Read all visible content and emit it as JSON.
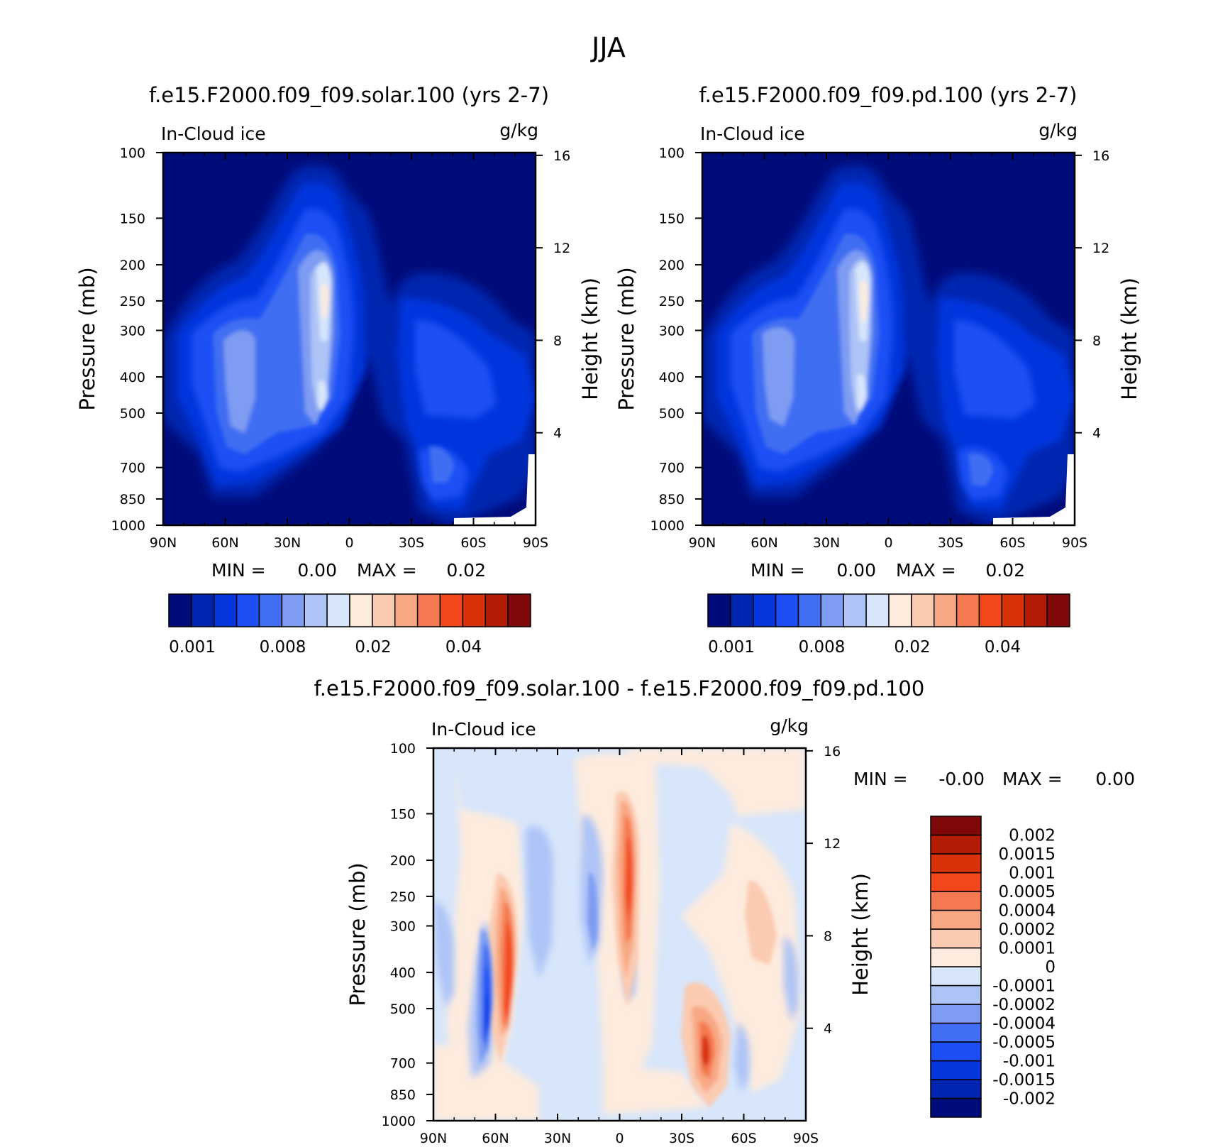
{
  "figure": {
    "title": "JJA"
  },
  "chart_data": [
    {
      "type": "contour",
      "id": "solar",
      "title": "f.e15.F2000.f09_f09.solar.100 (yrs 2-7)",
      "variable": "In-Cloud ice",
      "units": "g/kg",
      "xlabel": "",
      "ylabel": "Pressure (mb)",
      "y2label": "Height (km)",
      "xticks": [
        "90N",
        "60N",
        "30N",
        "0",
        "30S",
        "60S",
        "90S"
      ],
      "yticks": [
        "100",
        "150",
        "200",
        "250",
        "300",
        "400",
        "500",
        "700",
        "850",
        "1000"
      ],
      "y2ticks": [
        "16",
        "12",
        "8",
        "4"
      ],
      "stats": {
        "min_label": "MIN =",
        "min_value": "0.00",
        "max_label": "MAX =",
        "max_value": "0.02"
      },
      "colorbar": {
        "colors": [
          "#000c7a",
          "#0025b1",
          "#0435dd",
          "#1b4ff5",
          "#416ef2",
          "#7e9cf2",
          "#aec4f7",
          "#d7e6fb",
          "#fdebdd",
          "#fbcbb1",
          "#f8a884",
          "#f57950",
          "#f3481b",
          "#d93208",
          "#b21c05",
          "#7f0808"
        ],
        "labels": [
          "0.001",
          "0.008",
          "0.02",
          "0.04"
        ]
      }
    },
    {
      "type": "contour",
      "id": "pd",
      "title": "f.e15.F2000.f09_f09.pd.100 (yrs 2-7)",
      "variable": "In-Cloud ice",
      "units": "g/kg",
      "xlabel": "",
      "ylabel": "Pressure (mb)",
      "y2label": "Height (km)",
      "xticks": [
        "90N",
        "60N",
        "30N",
        "0",
        "30S",
        "60S",
        "90S"
      ],
      "yticks": [
        "100",
        "150",
        "200",
        "250",
        "300",
        "400",
        "500",
        "700",
        "850",
        "1000"
      ],
      "y2ticks": [
        "16",
        "12",
        "8",
        "4"
      ],
      "stats": {
        "min_label": "MIN =",
        "min_value": "0.00",
        "max_label": "MAX =",
        "max_value": "0.02"
      },
      "colorbar": {
        "colors": [
          "#000c7a",
          "#0025b1",
          "#0435dd",
          "#1b4ff5",
          "#416ef2",
          "#7e9cf2",
          "#aec4f7",
          "#d7e6fb",
          "#fdebdd",
          "#fbcbb1",
          "#f8a884",
          "#f57950",
          "#f3481b",
          "#d93208",
          "#b21c05",
          "#7f0808"
        ],
        "labels": [
          "0.001",
          "0.008",
          "0.02",
          "0.04"
        ]
      }
    },
    {
      "type": "contour",
      "id": "diff",
      "title": "f.e15.F2000.f09_f09.solar.100 - f.e15.F2000.f09_f09.pd.100",
      "variable": "In-Cloud ice",
      "units": "g/kg",
      "xlabel": "",
      "ylabel": "Pressure (mb)",
      "y2label": "Height (km)",
      "xticks": [
        "90N",
        "60N",
        "30N",
        "0",
        "30S",
        "60S",
        "90S"
      ],
      "yticks": [
        "100",
        "150",
        "200",
        "250",
        "300",
        "400",
        "500",
        "700",
        "850",
        "1000"
      ],
      "y2ticks": [
        "16",
        "12",
        "8",
        "4"
      ],
      "stats": {
        "min_label": "MIN =",
        "min_value": "-0.00",
        "max_label": "MAX =",
        "max_value": "0.00"
      },
      "colorbar": {
        "colors": [
          "#000c7a",
          "#0025b1",
          "#0435dd",
          "#1b4ff5",
          "#416ef2",
          "#7e9cf2",
          "#aec4f7",
          "#d7e6fb",
          "#fdebdd",
          "#fbcbb1",
          "#f8a884",
          "#f57950",
          "#f3481b",
          "#d93208",
          "#b21c05",
          "#7f0808"
        ],
        "labels": [
          "-0.002",
          "-0.0015",
          "-0.001",
          "-0.0005",
          "-0.0004",
          "-0.0002",
          "-0.0001",
          "0",
          "0.0001",
          "0.0002",
          "0.0004",
          "0.0005",
          "0.001",
          "0.0015",
          "0.002"
        ]
      }
    }
  ]
}
